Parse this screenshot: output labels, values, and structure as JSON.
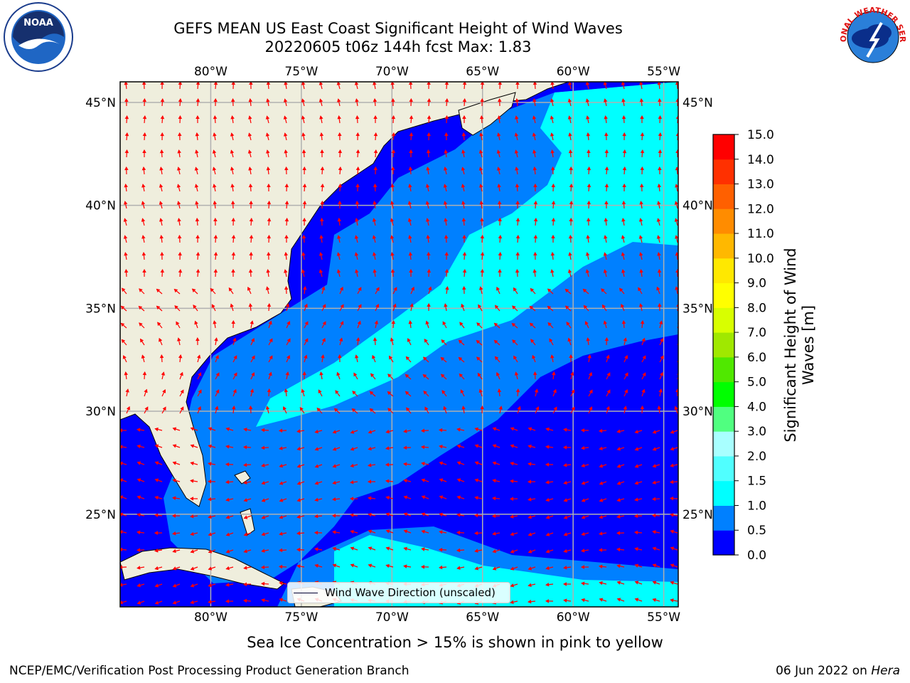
{
  "title": {
    "line1": "GEFS MEAN US East Coast Significant Height of Wind Waves",
    "line2": "20220605 t06z 144h fcst   Max: 1.83"
  },
  "logos": {
    "left": {
      "icon": "noaa-logo",
      "text": "NOAA"
    },
    "right": {
      "icon": "nws-logo",
      "text": "NATIONAL WEATHER SERVICE"
    }
  },
  "map": {
    "lon_ticks": [
      "80°W",
      "75°W",
      "70°W",
      "65°W",
      "60°W",
      "55°W"
    ],
    "lat_ticks": [
      "45°N",
      "40°N",
      "35°N",
      "30°N",
      "25°N"
    ],
    "lon_values": [
      -80,
      -75,
      -70,
      -65,
      -60,
      -55
    ],
    "lat_values": [
      45,
      40,
      35,
      30,
      25
    ],
    "extent": {
      "lon": [
        -85,
        -54.2
      ],
      "lat": [
        20.5,
        46
      ]
    },
    "land_color": "#efeedd",
    "arrow_color": "#ff0000",
    "grid_color": "#b0b0b0"
  },
  "legend": {
    "label": "Wind Wave Direction (unscaled)"
  },
  "colorbar": {
    "label": "Significant Height of Wind Waves [m]",
    "ticks": [
      "0.0",
      "0.5",
      "1.0",
      "1.5",
      "2.0",
      "3.0",
      "4.0",
      "5.0",
      "6.0",
      "7.0",
      "8.0",
      "9.0",
      "10.0",
      "11.0",
      "12.0",
      "13.0",
      "14.0",
      "15.0"
    ],
    "colors": [
      "#0000ff",
      "#0080ff",
      "#00ffff",
      "#50ffff",
      "#a8ffff",
      "#50ff80",
      "#00ff00",
      "#50e800",
      "#a0e800",
      "#d8ff00",
      "#ffff00",
      "#ffe800",
      "#ffb800",
      "#ff8c00",
      "#ff6000",
      "#ff3000",
      "#ff0000"
    ]
  },
  "note": "Sea Ice Concentration > 15% is shown in pink to yellow",
  "footer": {
    "left": "NCEP/EMC/Verification Post Processing Product Generation Branch",
    "right_date": "06 Jun 2022 on ",
    "right_host": "Hera"
  }
}
